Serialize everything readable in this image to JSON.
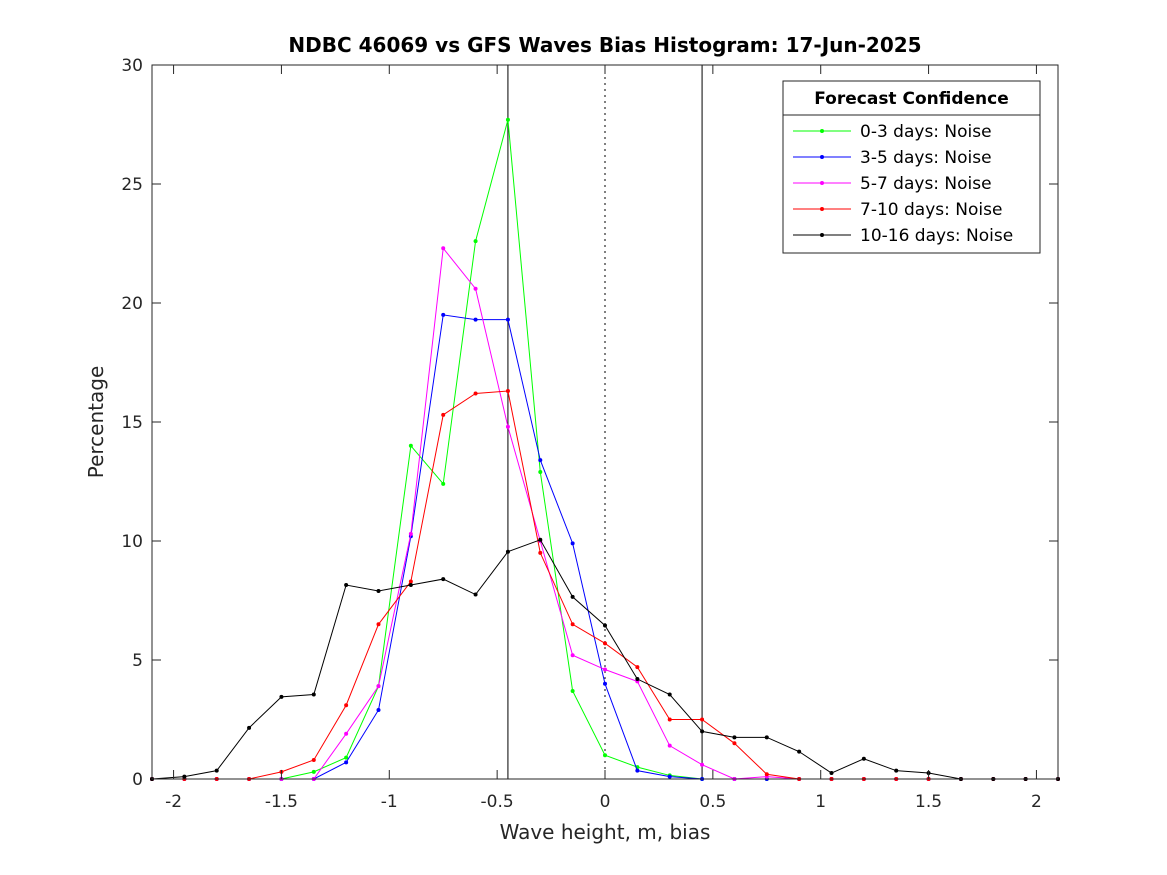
{
  "chart_data": {
    "type": "line",
    "title": "NDBC 46069 vs GFS Waves Bias Histogram: 17-Jun-2025",
    "xlabel": "Wave height, m, bias",
    "ylabel": "Percentage",
    "xlim": [
      -2.1,
      2.1
    ],
    "ylim": [
      0,
      30
    ],
    "xticks": [
      -2,
      -1.5,
      -1,
      -0.5,
      0,
      0.5,
      1,
      1.5,
      2
    ],
    "xtick_labels": [
      "-2",
      "-1.5",
      "-1",
      "-0.5",
      "0",
      "0.5",
      "1",
      "1.5",
      "2"
    ],
    "yticks": [
      0,
      5,
      10,
      15,
      20,
      25,
      30
    ],
    "ytick_labels": [
      "0",
      "5",
      "10",
      "15",
      "20",
      "25",
      "30"
    ],
    "reference_lines": [
      {
        "x": -0.45,
        "style": "solid",
        "color": "#000000"
      },
      {
        "x": 0,
        "style": "dotted",
        "color": "#000000"
      },
      {
        "x": 0.45,
        "style": "solid",
        "color": "#000000"
      }
    ],
    "legend": {
      "title": "Forecast Confidence",
      "position": "top-right"
    },
    "x": [
      -2.1,
      -1.95,
      -1.8,
      -1.65,
      -1.5,
      -1.35,
      -1.2,
      -1.05,
      -0.9,
      -0.75,
      -0.6,
      -0.45,
      -0.3,
      -0.15,
      0,
      0.15,
      0.3,
      0.45,
      0.6,
      0.75,
      0.9,
      1.05,
      1.2,
      1.35,
      1.5,
      1.65,
      1.8,
      1.95,
      2.1
    ],
    "series": [
      {
        "name": "0-3 days: Noise",
        "color": "#00ff00",
        "values": [
          0,
          0,
          0,
          0,
          0,
          0.3,
          0.9,
          3.9,
          14.0,
          12.4,
          22.6,
          27.7,
          12.9,
          3.7,
          1.0,
          0.5,
          0.15,
          0,
          0,
          0,
          0,
          0,
          0,
          0,
          0,
          0,
          0,
          0,
          0
        ]
      },
      {
        "name": "3-5 days: Noise",
        "color": "#0000ff",
        "values": [
          0,
          0,
          0,
          0,
          0,
          0,
          0.7,
          2.9,
          10.2,
          19.5,
          19.3,
          19.3,
          13.4,
          9.9,
          4.0,
          0.35,
          0.1,
          0,
          0,
          0,
          0,
          0,
          0,
          0,
          0,
          0,
          0,
          0,
          0
        ]
      },
      {
        "name": "5-7 days: Noise",
        "color": "#ff00ff",
        "values": [
          0,
          0,
          0,
          0,
          0,
          0,
          1.9,
          3.9,
          10.3,
          22.3,
          20.6,
          14.8,
          10.0,
          5.2,
          4.6,
          4.1,
          1.4,
          0.6,
          0,
          0.1,
          0,
          0,
          0,
          0,
          0,
          0,
          0,
          0,
          0
        ]
      },
      {
        "name": "7-10 days: Noise",
        "color": "#ff0000",
        "values": [
          0,
          0,
          0,
          0,
          0.3,
          0.8,
          3.1,
          6.5,
          8.3,
          15.3,
          16.2,
          16.3,
          9.5,
          6.5,
          5.7,
          4.7,
          2.5,
          2.5,
          1.5,
          0.2,
          0,
          0,
          0,
          0,
          0,
          0,
          0,
          0,
          0
        ]
      },
      {
        "name": "10-16 days: Noise",
        "color": "#000000",
        "values": [
          0,
          0.1,
          0.35,
          2.15,
          3.45,
          3.55,
          8.15,
          7.9,
          8.15,
          8.4,
          7.75,
          9.55,
          10.05,
          7.65,
          6.45,
          4.2,
          3.55,
          2.0,
          1.75,
          1.75,
          1.15,
          0.25,
          0.85,
          0.35,
          0.25,
          0,
          0,
          0,
          0
        ]
      }
    ]
  }
}
